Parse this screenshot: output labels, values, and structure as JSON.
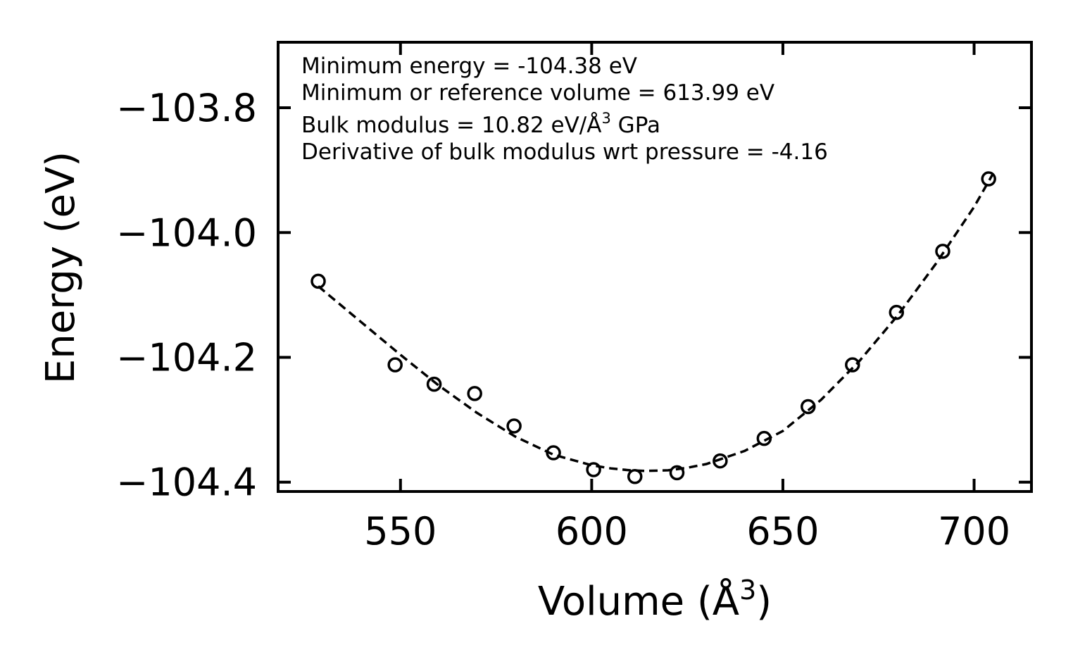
{
  "chart_data": {
    "type": "scatter",
    "title": "",
    "xlabel": "Volume (Å",
    "xlabel_sup": "3",
    "xlabel_close": ")",
    "ylabel": "Energy (eV)",
    "xlim": [
      518,
      715
    ],
    "ylim": [
      -104.415,
      -103.695
    ],
    "xticks": [
      550,
      600,
      650,
      700
    ],
    "xtick_labels": [
      "550",
      "600",
      "650",
      "700"
    ],
    "yticks": [
      -103.8,
      -104.0,
      -104.2,
      -104.4
    ],
    "ytick_labels": [
      "−103.8",
      "−104.0",
      "−104.2",
      "−104.4"
    ],
    "series": [
      {
        "name": "data",
        "marker": "open-circle",
        "x": [
          528.5,
          548.6,
          558.8,
          569.4,
          579.7,
          590.0,
          600.5,
          611.3,
          622.3,
          633.6,
          645.1,
          656.6,
          668.2,
          679.7,
          691.8,
          703.8
        ],
        "y": [
          -104.078,
          -104.212,
          -104.243,
          -104.258,
          -104.31,
          -104.353,
          -104.38,
          -104.391,
          -104.385,
          -104.366,
          -104.33,
          -104.279,
          -104.212,
          -104.128,
          -104.03,
          -103.914
        ]
      },
      {
        "name": "fit",
        "style": "dashed",
        "x": [
          528.5,
          540,
          550,
          560,
          570,
          580,
          590,
          600,
          605,
          610,
          613.99,
          620,
          625,
          630,
          640,
          650,
          660,
          670,
          680,
          690,
          700,
          705
        ],
        "y": [
          -104.086,
          -104.145,
          -104.196,
          -104.245,
          -104.289,
          -104.327,
          -104.356,
          -104.373,
          -104.378,
          -104.381,
          -104.382,
          -104.381,
          -104.377,
          -104.371,
          -104.35,
          -104.318,
          -104.268,
          -104.206,
          -104.133,
          -104.05,
          -103.959,
          -103.905
        ]
      }
    ],
    "annotations": [
      {
        "text": "Minimum energy = -104.38 eV"
      },
      {
        "text": "Minimum or reference volume = 613.99 eV"
      },
      {
        "text": "Bulk modulus = 10.82 eV/Å",
        "sup": "3",
        "after": " GPa"
      },
      {
        "text": "Derivative of bulk modulus wrt pressure = -4.16"
      }
    ],
    "grid": false,
    "legend": "none"
  }
}
